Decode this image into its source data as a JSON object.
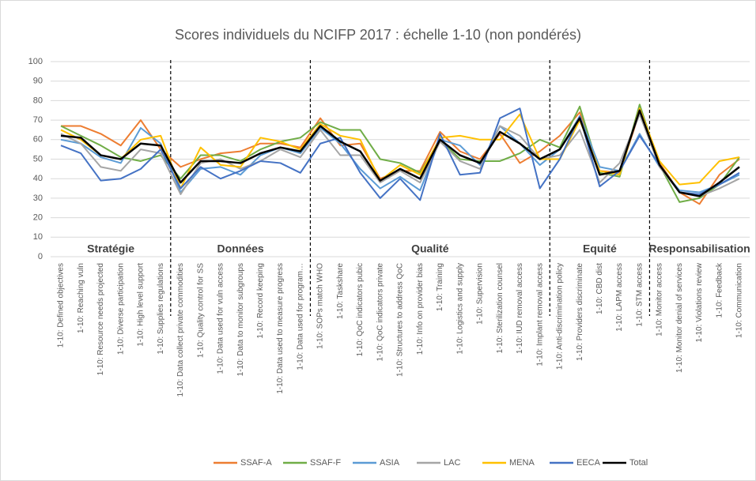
{
  "chart_data": {
    "type": "line",
    "title": "Scores individuels du NCIFP 2017 : échelle 1-10 (non pondérés)",
    "categories": [
      "1-10: Defined objectives",
      "1-10: Reaching vuln",
      "1-10: Resource needs projected",
      "1-10: Diverse participation",
      "1-10: High level support",
      "1-10: Supplies regulations",
      "1-10: Data collect private commodities",
      "1-10: Quality control for SS",
      "1-10: Data used for vuln access",
      "1-10: Data to monitor subgroups",
      "1-10: Record keeping",
      "1-10: Data used to measure progress",
      "1-10: Data used for program…",
      "1-10: SOPs match WHO",
      "1-10: Taskshare",
      "1-10: QoC indicators pubic",
      "1-10: QoC indicators private",
      "1-10: Structures to address QoC",
      "1-10: Info on provider bias",
      "1-10: Training",
      "1-10: Logistics and supply",
      "1-10: Supervision",
      "1-10: Sterilization counsel",
      "1-10: IUD removal access",
      "1-10: Implant removal access",
      "1-10: Anti-discrimination policy",
      "1-10: Providers discriminate",
      "1-10: CBD dist",
      "1-10: LAPM access",
      "1-10: STM access",
      "1-10: Monitor access",
      "1-10: Monitor denial of services",
      "1-10: Violations review",
      "1-10: Feedback",
      "1-10: Communication"
    ],
    "sections": [
      "Stratégie",
      "Données",
      "Qualité",
      "Equité",
      "Responsabilisation"
    ],
    "series": [
      {
        "name": "SSAF-A",
        "color": "#ED7D31",
        "values": [
          67,
          67,
          63,
          57,
          70,
          55,
          46,
          50,
          53,
          54,
          58,
          58,
          56,
          71,
          57,
          58,
          40,
          44,
          44,
          64,
          54,
          50,
          63,
          48,
          54,
          62,
          74,
          44,
          43,
          74,
          48,
          33,
          27,
          42,
          50
        ]
      },
      {
        "name": "SSAF-F",
        "color": "#70AD47",
        "values": [
          67,
          62,
          57,
          51,
          49,
          52,
          40,
          52,
          52,
          49,
          55,
          59,
          61,
          69,
          65,
          65,
          50,
          48,
          43,
          60,
          50,
          49,
          49,
          53,
          60,
          56,
          77,
          43,
          41,
          78,
          47,
          28,
          30,
          37,
          51
        ]
      },
      {
        "name": "ASIA",
        "color": "#5B9BD5",
        "values": [
          60,
          58,
          51,
          48,
          66,
          58,
          33,
          45,
          46,
          42,
          52,
          56,
          53,
          66,
          58,
          45,
          35,
          41,
          34,
          60,
          57,
          47,
          67,
          58,
          47,
          55,
          72,
          46,
          44,
          63,
          46,
          34,
          33,
          37,
          42
        ]
      },
      {
        "name": "LAC",
        "color": "#A5A5A5",
        "values": [
          63,
          58,
          46,
          44,
          55,
          53,
          32,
          48,
          50,
          45,
          49,
          55,
          51,
          65,
          52,
          52,
          38,
          44,
          38,
          59,
          49,
          45,
          67,
          62,
          50,
          52,
          65,
          38,
          48,
          73,
          46,
          33,
          31,
          35,
          40
        ]
      },
      {
        "name": "MENA",
        "color": "#FFC000",
        "values": [
          65,
          60,
          52,
          50,
          60,
          62,
          35,
          56,
          47,
          46,
          61,
          59,
          55,
          68,
          62,
          60,
          39,
          47,
          42,
          61,
          62,
          60,
          60,
          73,
          50,
          50,
          70,
          44,
          42,
          76,
          49,
          37,
          38,
          49,
          51
        ]
      },
      {
        "name": "EECA",
        "color": "#4472C4",
        "values": [
          57,
          53,
          39,
          40,
          45,
          55,
          35,
          46,
          40,
          44,
          49,
          48,
          43,
          58,
          61,
          43,
          30,
          40,
          29,
          63,
          42,
          43,
          71,
          76,
          35,
          50,
          72,
          36,
          44,
          62,
          47,
          33,
          32,
          37,
          43
        ]
      },
      {
        "name": "Total",
        "color": "#000000",
        "values": [
          62,
          61,
          52,
          50,
          58,
          57,
          38,
          49,
          49,
          48,
          53,
          56,
          54,
          67,
          59,
          54,
          39,
          45,
          40,
          60,
          52,
          48,
          64,
          58,
          50,
          55,
          71,
          42,
          44,
          75,
          47,
          33,
          31,
          38,
          46
        ]
      }
    ],
    "ylim": [
      0,
      100
    ],
    "yticks": [
      0,
      10,
      20,
      30,
      40,
      50,
      60,
      70,
      80,
      90,
      100
    ],
    "grid": true,
    "legend": "bottom"
  }
}
